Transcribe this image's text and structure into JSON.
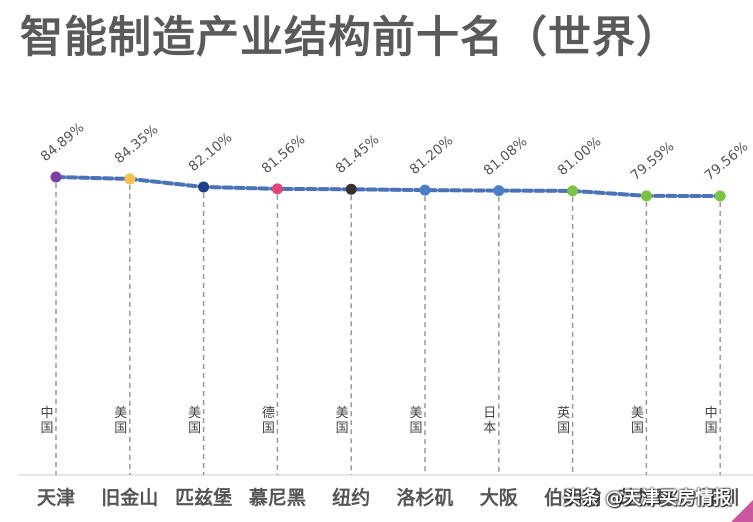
{
  "title": "智能制造产业结构前十名（世界）",
  "watermark": "头条 @天津买房情报",
  "chart_data": {
    "type": "line",
    "title": "智能制造产业结构前十名（世界）",
    "xlabel": "",
    "ylabel": "",
    "grid": false,
    "categories": [
      "天津",
      "旧金山",
      "匹兹堡",
      "慕尼黑",
      "纽约",
      "洛杉矶",
      "大阪",
      "伯明翰",
      "芝加哥",
      "深圳"
    ],
    "countries": [
      "中国",
      "美国",
      "美国",
      "德国",
      "美国",
      "美国",
      "日本",
      "英国",
      "美国",
      "中国"
    ],
    "values": [
      84.89,
      84.35,
      82.1,
      81.56,
      81.45,
      81.2,
      81.08,
      81.0,
      79.59,
      79.56
    ],
    "value_labels": [
      "84.89%",
      "84.35%",
      "82.10%",
      "81.56%",
      "81.45%",
      "81.20%",
      "81.08%",
      "81.00%",
      "79.59%",
      "79.56%"
    ],
    "marker_colors": [
      "#7b3fa0",
      "#f2c14e",
      "#1f3f8a",
      "#e0457b",
      "#3a3030",
      "#4a7fc8",
      "#4a7fc8",
      "#7dc242",
      "#7dc242",
      "#7dc242"
    ],
    "line_color": "#4a72b8",
    "line_style": "dashed"
  }
}
